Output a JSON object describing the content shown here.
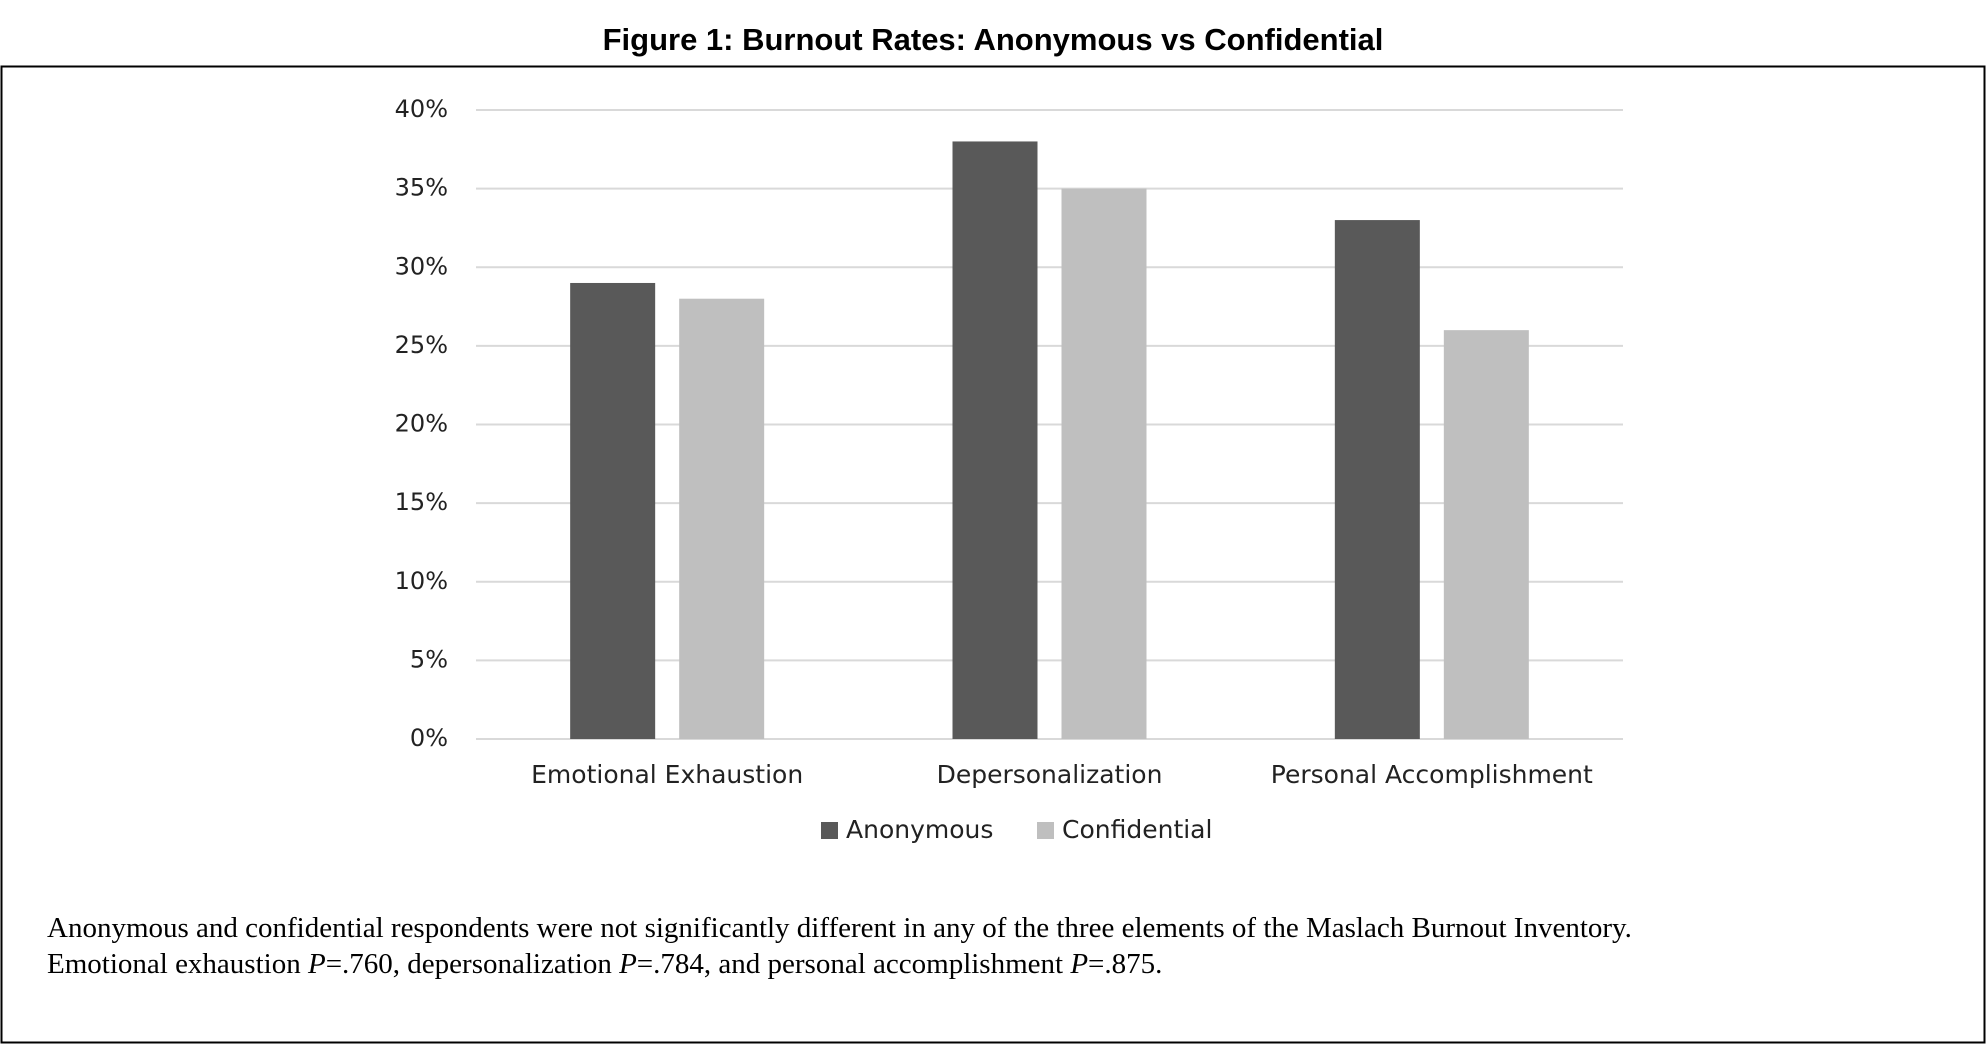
{
  "chart_data": {
    "type": "bar",
    "title": "Figure 1: Burnout Rates: Anonymous vs Confidential",
    "categories": [
      "Emotional Exhaustion",
      "Depersonalization",
      "Personal Accomplishment"
    ],
    "series": [
      {
        "name": "Anonymous",
        "color": "#595959",
        "values": [
          29,
          38,
          33
        ]
      },
      {
        "name": "Confidential",
        "color": "#bfbfbf",
        "values": [
          28,
          35,
          26
        ]
      }
    ],
    "ylim": [
      0,
      40
    ],
    "yticks": [
      {
        "value": 0,
        "label": "0%"
      },
      {
        "value": 5,
        "label": "5%"
      },
      {
        "value": 10,
        "label": "10%"
      },
      {
        "value": 15,
        "label": "15%"
      },
      {
        "value": 20,
        "label": "20%"
      },
      {
        "value": 25,
        "label": "25%"
      },
      {
        "value": 30,
        "label": "30%"
      },
      {
        "value": 35,
        "label": "35%"
      },
      {
        "value": 40,
        "label": "40%"
      }
    ],
    "grid": true,
    "legend": "bottom",
    "caption": [
      [
        "Anonymous and confidential respondents were not significantly different in any of the three elements of the Maslach Burnout Inventory."
      ],
      [
        "Emotional exhaustion ",
        "P",
        "=.760, depersonalization ",
        "P",
        "=.784, and personal accomplishment ",
        "P",
        "=.875."
      ]
    ]
  }
}
